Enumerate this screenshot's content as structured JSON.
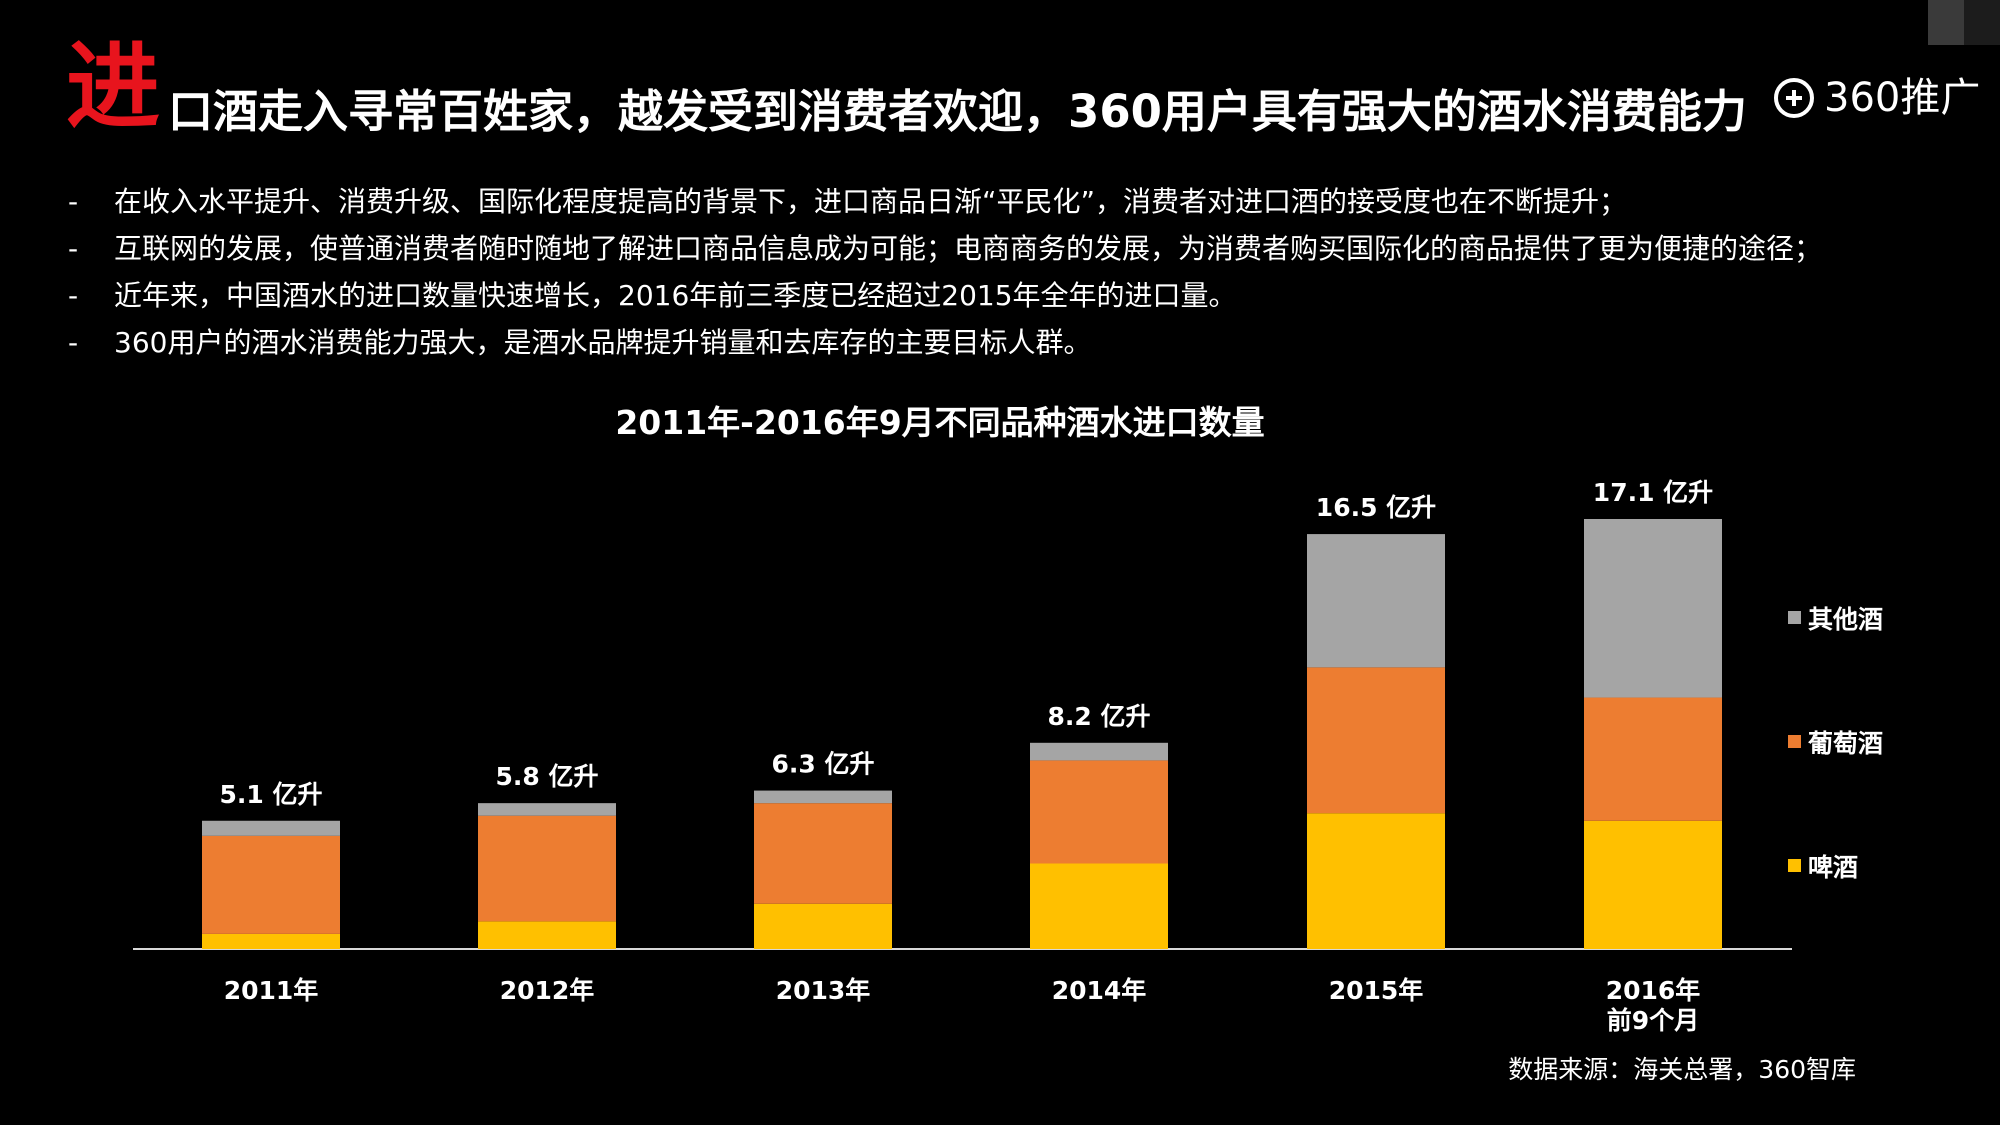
{
  "title": {
    "first_char": "进",
    "rest": "口酒走入寻常百姓家，越发受到消费者欢迎，360用户具有强大的酒水消费能力"
  },
  "logo": {
    "text": "360推广"
  },
  "bullets": [
    {
      "dash": "-",
      "text": "在收入水平提升、消费升级、国际化程度提高的背景下，进口商品日渐“平民化”，消费者对进口酒的接受度也在不断提升；"
    },
    {
      "dash": "-",
      "text": "互联网的发展，使普通消费者随时随地了解进口商品信息成为可能；电商商务的发展，为消费者购买国际化的商品提供了更为便捷的途径；"
    },
    {
      "dash": "-",
      "text": "近年来，中国酒水的进口数量快速增长，2016年前三季度已经超过2015年全年的进口量。"
    },
    {
      "dash": "-",
      "text": "360用户的酒水消费能力强大，是酒水品牌提升销量和去库存的主要目标人群。"
    }
  ],
  "source": "数据来源：海关总署，360智库",
  "colors": {
    "beer": "#ffc000",
    "wine": "#ed7d31",
    "other": "#a5a5a5",
    "title_accent": "#e8141d"
  },
  "chart_data": {
    "type": "bar",
    "stacked": true,
    "title": "2011年-2016年9月不同品种酒水进口数量",
    "unit": "亿升",
    "categories": [
      [
        "2011年"
      ],
      [
        "2012年"
      ],
      [
        "2013年"
      ],
      [
        "2014年"
      ],
      [
        "2015年"
      ],
      [
        "2016年",
        "前9个月"
      ]
    ],
    "series": [
      {
        "name": "啤酒",
        "color": "#ffc000",
        "values": [
          0.6,
          1.1,
          1.8,
          3.4,
          5.4,
          5.1
        ]
      },
      {
        "name": "葡萄酒",
        "color": "#ed7d31",
        "values": [
          3.9,
          4.2,
          4.0,
          4.1,
          5.8,
          4.9
        ]
      },
      {
        "name": "其他酒",
        "color": "#a5a5a5",
        "values": [
          0.6,
          0.5,
          0.5,
          0.7,
          5.3,
          7.1
        ]
      }
    ],
    "totals": [
      5.1,
      5.8,
      6.3,
      8.2,
      16.5,
      17.1
    ],
    "total_labels": [
      "5.1 亿升",
      "5.8 亿升",
      "6.3 亿升",
      "8.2 亿升",
      "16.5 亿升",
      "17.1 亿升"
    ],
    "legend_order": [
      "其他酒",
      "葡萄酒",
      "啤酒"
    ],
    "legend_position": "right",
    "ylim": [
      0,
      17.1
    ]
  }
}
